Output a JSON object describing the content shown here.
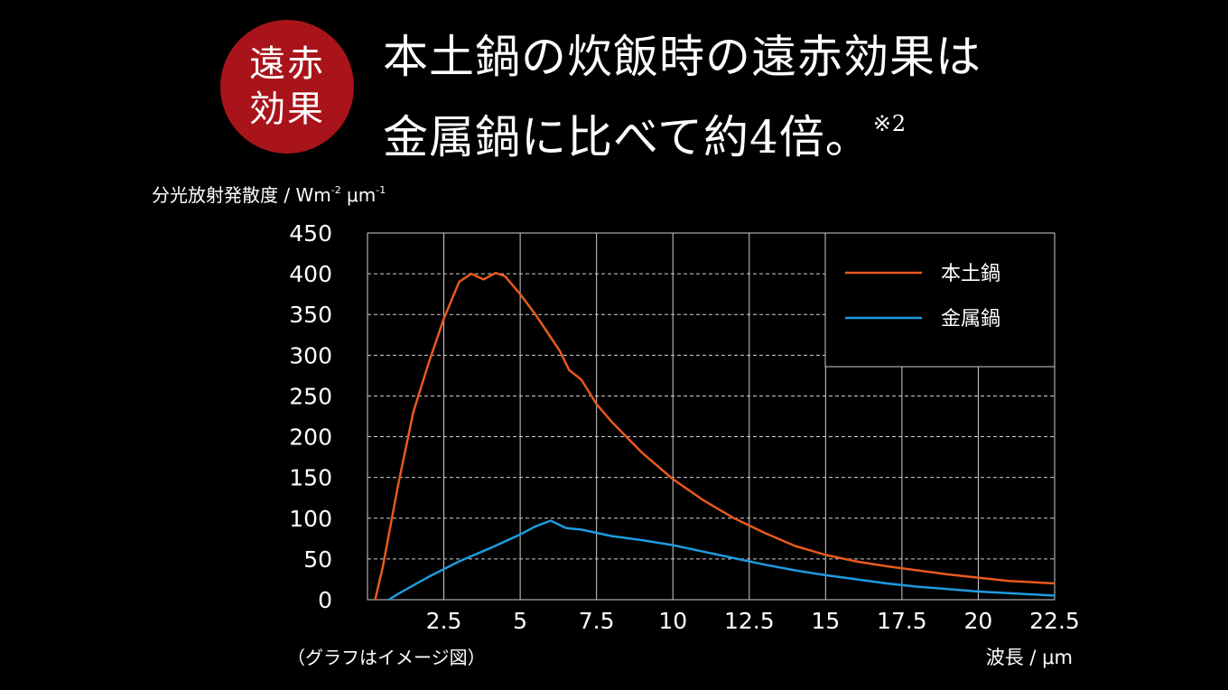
{
  "badge": {
    "line1": "遠赤",
    "line2": "効果"
  },
  "headline": {
    "line1": "本土鍋の炊飯時の遠赤効果は",
    "line2": "金属鍋に比べて約4倍。",
    "note_mark": "※2"
  },
  "colors": {
    "background": "#000000",
    "badge": "#a8141a",
    "donabe": "#e85a1e",
    "metal": "#1e9be0",
    "grid": "#cfcfcf"
  },
  "chart_data": {
    "type": "line",
    "ylabel_main": "分光放射発散度 / Wm",
    "ylabel_exp1": "-2",
    "ylabel_mid": " μm",
    "ylabel_exp2": "-1",
    "xlabel": "波長 / μm",
    "note": "（グラフはイメージ図）",
    "xlim": [
      0,
      22.5
    ],
    "ylim": [
      0,
      450
    ],
    "x_ticks": [
      "2.5",
      "5",
      "7.5",
      "10",
      "12.5",
      "15",
      "17.5",
      "20",
      "22.5"
    ],
    "y_ticks": [
      "0",
      "50",
      "100",
      "150",
      "200",
      "250",
      "300",
      "350",
      "400",
      "450"
    ],
    "grid": true,
    "legend_position": "top-right",
    "series": [
      {
        "name": "本土鍋",
        "color": "#e85a1e",
        "x": [
          0.25,
          0.5,
          1,
          1.5,
          2,
          2.5,
          3,
          3.4,
          3.8,
          4.2,
          4.5,
          5,
          5.5,
          6,
          6.3,
          6.6,
          7,
          7.5,
          8,
          9,
          10,
          11,
          12,
          13,
          14,
          15,
          16,
          17,
          18,
          19,
          20,
          21,
          22.5
        ],
        "y": [
          0,
          40,
          140,
          230,
          290,
          345,
          390,
          400,
          393,
          401,
          397,
          375,
          350,
          322,
          305,
          282,
          270,
          240,
          218,
          180,
          148,
          122,
          100,
          82,
          66,
          55,
          47,
          41,
          36,
          31,
          27,
          23,
          20
        ]
      },
      {
        "name": "金属鍋",
        "color": "#1e9be0",
        "x": [
          0.7,
          1,
          2,
          3,
          4,
          5,
          5.5,
          6,
          6.5,
          7,
          7.5,
          8,
          9,
          10,
          11,
          12,
          13,
          14,
          15,
          16,
          17,
          18,
          19,
          20,
          21,
          22.5
        ],
        "y": [
          0,
          7,
          28,
          47,
          63,
          80,
          90,
          97,
          88,
          86,
          82,
          78,
          73,
          67,
          59,
          51,
          43,
          36,
          30,
          25,
          20,
          16,
          13,
          10,
          8,
          5
        ]
      }
    ]
  }
}
